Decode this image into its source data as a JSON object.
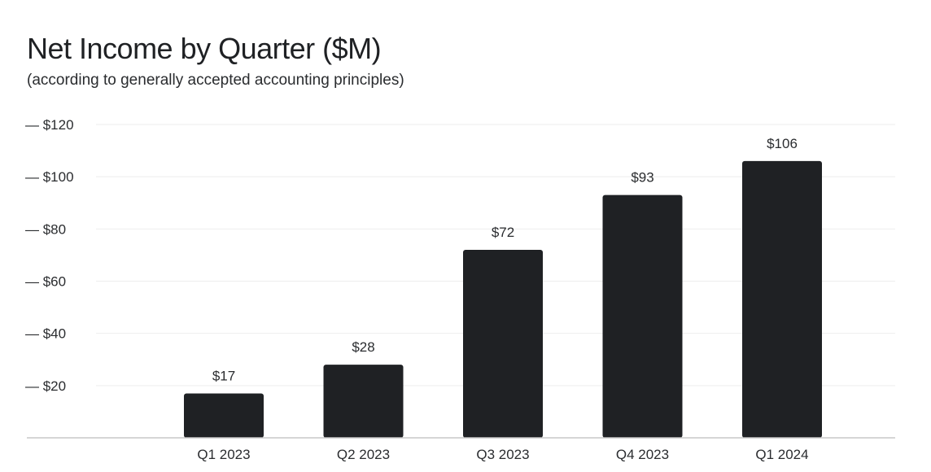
{
  "chart_data": {
    "type": "bar",
    "title": "Net Income by Quarter ($M)",
    "subtitle": "(according to generally accepted accounting principles)",
    "categories": [
      "Q1 2023",
      "Q2 2023",
      "Q3 2023",
      "Q4 2023",
      "Q1 2024"
    ],
    "values": [
      17,
      28,
      72,
      93,
      106
    ],
    "data_labels": [
      "$17",
      "$28",
      "$72",
      "$93",
      "$106"
    ],
    "ylim": [
      0,
      120
    ],
    "yticks": [
      20,
      40,
      60,
      80,
      100,
      120
    ],
    "ytick_labels": [
      "— $20",
      "— $40",
      "— $60",
      "— $80",
      "— $100",
      "— $120"
    ],
    "grid": true,
    "bar_color": "#1f2124",
    "grid_color": "#eeeeee",
    "axis_color": "#c8c8c8"
  }
}
